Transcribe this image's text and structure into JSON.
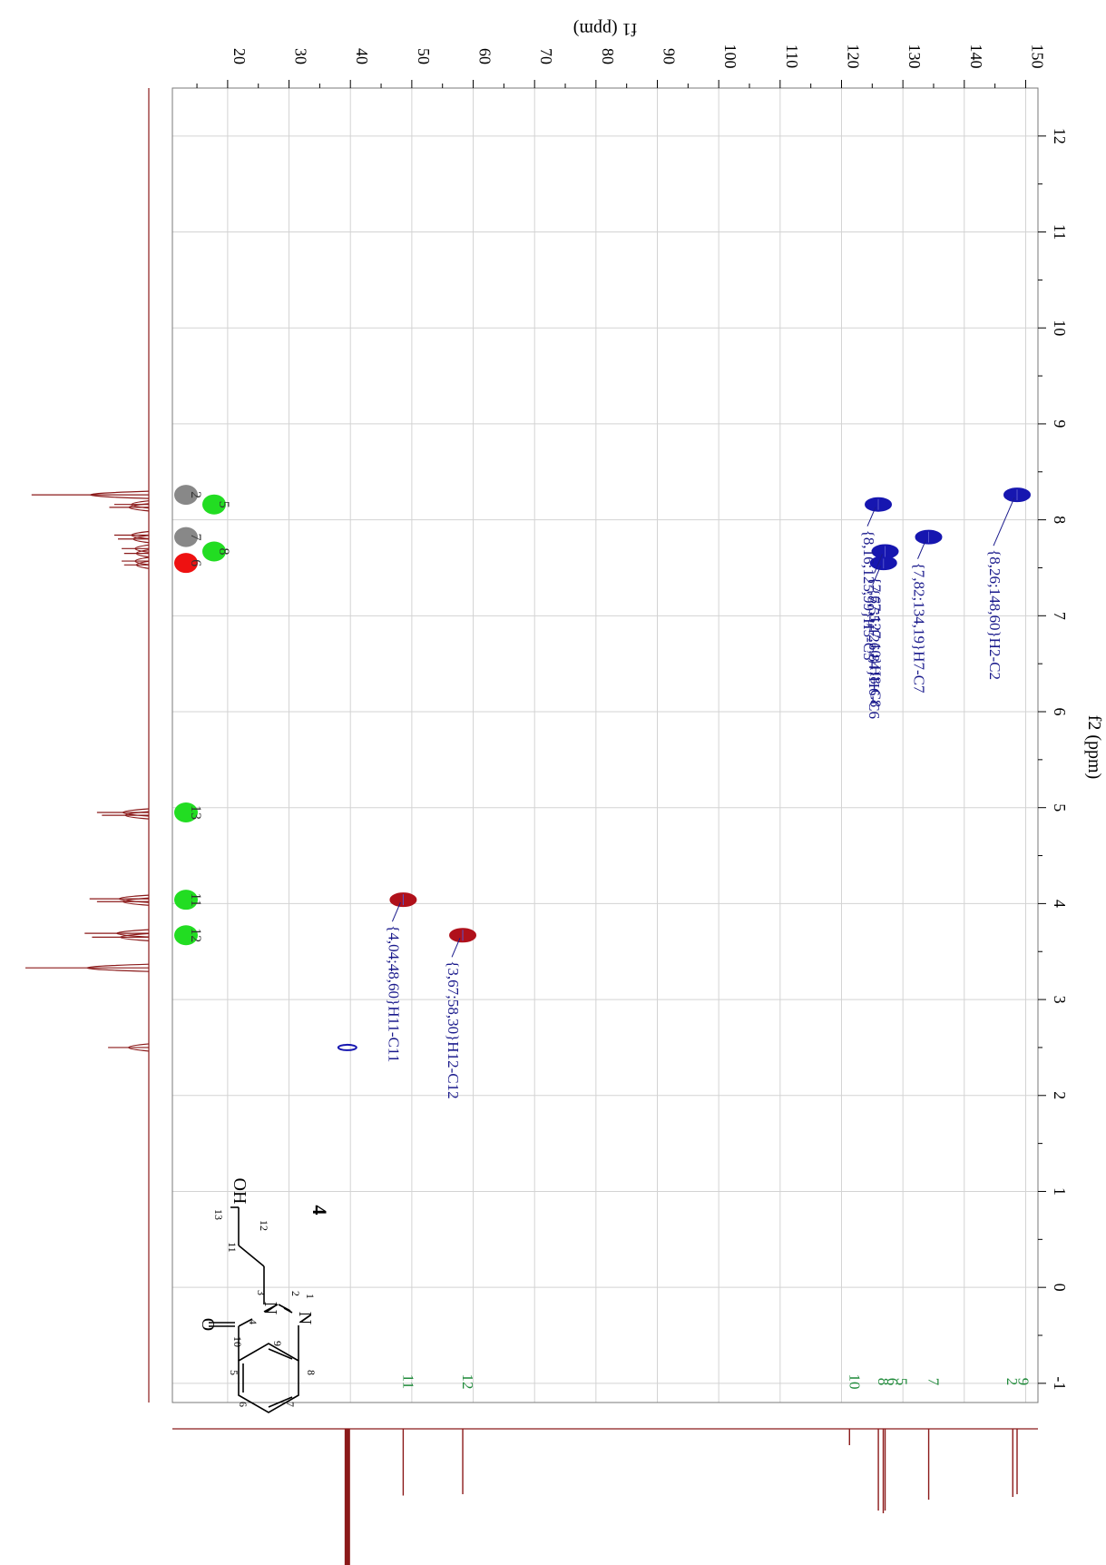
{
  "chart_data": {
    "type": "scatter",
    "subtype": "2D NMR HSQC",
    "rotation": "figure rotated 90 degrees clockwise",
    "f2_axis": {
      "label": "f2 (ppm)",
      "range": [
        12.5,
        -1.2
      ],
      "ticks": [
        -1,
        0,
        1,
        2,
        3,
        4,
        5,
        6,
        7,
        8,
        9,
        10,
        11,
        12
      ],
      "tick_labels": [
        "-1",
        "0",
        "1",
        "2",
        "3",
        "4",
        "5",
        "6",
        "7",
        "8",
        "9",
        "10",
        "11",
        "12"
      ]
    },
    "f1_axis": {
      "label": "f1 (ppm)",
      "range": [
        11,
        152
      ],
      "ticks": [
        20,
        30,
        40,
        50,
        60,
        70,
        80,
        90,
        100,
        110,
        120,
        130,
        140,
        150
      ],
      "tick_labels": [
        "20",
        "30",
        "40",
        "50",
        "60",
        "70",
        "80",
        "90",
        "100",
        "110",
        "120",
        "130",
        "140",
        "150"
      ]
    },
    "grid": true,
    "cross_peaks": [
      {
        "h": 2.5,
        "c": 39.5,
        "phase": "positive",
        "label": ""
      },
      {
        "h": 4.04,
        "c": 48.6,
        "phase": "negative",
        "label": "{4,04;48,60}H11-C11"
      },
      {
        "h": 3.67,
        "c": 58.3,
        "phase": "negative",
        "label": "{3,67;58,30}H12-C12"
      },
      {
        "h": 7.55,
        "c": 126.84,
        "phase": "positive",
        "label": "{7,55;126,84}H6-C6"
      },
      {
        "h": 8.16,
        "c": 125.99,
        "phase": "positive",
        "label": "{8,16;125,99}H5-C5"
      },
      {
        "h": 7.67,
        "c": 127.1,
        "phase": "positive",
        "label": "{7,67;127,10}H8-C8"
      },
      {
        "h": 7.82,
        "c": 134.19,
        "phase": "positive",
        "label": "{7,82;134,19}H7-C7"
      },
      {
        "h": 8.26,
        "c": 148.6,
        "phase": "positive",
        "label": "{8,26;148,60}H2-C2"
      }
    ],
    "h_assignment_markers": [
      {
        "label": "13",
        "h": 4.95,
        "color": "#22dd22",
        "row": 0
      },
      {
        "label": "11",
        "h": 4.04,
        "color": "#22dd22",
        "row": 0
      },
      {
        "label": "12",
        "h": 3.67,
        "color": "#22dd22",
        "row": 0
      },
      {
        "label": "2",
        "h": 8.26,
        "color": "#888888",
        "row": 0
      },
      {
        "label": "7",
        "h": 7.82,
        "color": "#888888",
        "row": 0
      },
      {
        "label": "6",
        "h": 7.55,
        "color": "#ee1111",
        "row": 0
      },
      {
        "label": "5",
        "h": 8.16,
        "color": "#22dd22",
        "row": 1
      },
      {
        "label": "8",
        "h": 7.67,
        "color": "#22dd22",
        "row": 1
      }
    ],
    "c_assignment_labels": [
      {
        "text": "11",
        "c": 48.6
      },
      {
        "text": "12",
        "c": 58.3
      },
      {
        "text": "10",
        "c": 121.3
      },
      {
        "text": "8",
        "c": 126.0
      },
      {
        "text": "6",
        "c": 127.5
      },
      {
        "text": "5",
        "c": 129.0
      },
      {
        "text": "7",
        "c": 134.2
      },
      {
        "text": "2",
        "c": 147.0
      },
      {
        "text": "9",
        "c": 148.8
      }
    ],
    "h1_projection_peaks": [
      {
        "h": 8.26,
        "i": 0.95
      },
      {
        "h": 8.13,
        "i": 0.32
      },
      {
        "h": 8.16,
        "i": 0.28
      },
      {
        "h": 7.84,
        "i": 0.28
      },
      {
        "h": 7.8,
        "i": 0.25
      },
      {
        "h": 7.7,
        "i": 0.22
      },
      {
        "h": 7.65,
        "i": 0.2
      },
      {
        "h": 7.57,
        "i": 0.22
      },
      {
        "h": 7.53,
        "i": 0.2
      },
      {
        "h": 4.95,
        "i": 0.42
      },
      {
        "h": 4.92,
        "i": 0.38
      },
      {
        "h": 4.05,
        "i": 0.48
      },
      {
        "h": 4.02,
        "i": 0.42
      },
      {
        "h": 3.69,
        "i": 0.52
      },
      {
        "h": 3.65,
        "i": 0.46
      },
      {
        "h": 3.33,
        "i": 1.0
      },
      {
        "h": 2.5,
        "i": 0.33
      }
    ],
    "c13_projection_peaks": [
      {
        "c": 39.5,
        "i": 1.0
      },
      {
        "c": 48.6,
        "i": 0.49
      },
      {
        "c": 58.3,
        "i": 0.48
      },
      {
        "c": 121.3,
        "i": 0.12
      },
      {
        "c": 126.0,
        "i": 0.6
      },
      {
        "c": 126.8,
        "i": 0.62
      },
      {
        "c": 127.1,
        "i": 0.6
      },
      {
        "c": 134.2,
        "i": 0.52
      },
      {
        "c": 147.9,
        "i": 0.5
      },
      {
        "c": 148.6,
        "i": 0.48
      }
    ]
  },
  "structure": {
    "compound_number": "4",
    "carbonyl_O": "O",
    "oh_label": "OH",
    "n3_label": "N",
    "n1_label": "N",
    "atom_numbers": [
      "1",
      "2",
      "3",
      "4",
      "5",
      "6",
      "7",
      "8",
      "9",
      "10",
      "11",
      "12",
      "13"
    ]
  },
  "colors": {
    "projection": "#8b1a1a",
    "positive_peak": "#1616b0",
    "negative_peak": "#b0111b",
    "peak_label": "#1a1a8c",
    "carbon_label": "#1f8a3a",
    "grid": "#d3d3d3"
  }
}
